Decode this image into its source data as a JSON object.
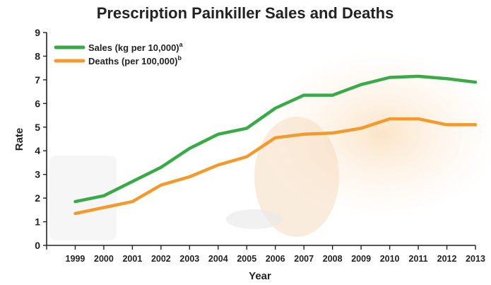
{
  "chart_data": {
    "type": "line",
    "title": "Prescription Painkiller Sales and Deaths",
    "xlabel": "Year",
    "ylabel": "Rate",
    "x": [
      1999,
      2000,
      2001,
      2002,
      2003,
      2004,
      2005,
      2006,
      2007,
      2008,
      2009,
      2010,
      2011,
      2012,
      2013
    ],
    "xlim": [
      1998,
      2013
    ],
    "ylim": [
      0,
      9
    ],
    "yticks": [
      0,
      1,
      2,
      3,
      4,
      5,
      6,
      7,
      8,
      9
    ],
    "grid": false,
    "legend_position": "top-left",
    "series": [
      {
        "name": "Sales (kg per 10,000)",
        "superscript": "a",
        "color": "#3aaa48",
        "values": [
          1.85,
          2.1,
          2.7,
          3.3,
          4.1,
          4.7,
          4.95,
          5.8,
          6.35,
          6.35,
          6.8,
          7.1,
          7.15,
          7.05,
          6.9
        ]
      },
      {
        "name": "Deaths (per 100,000)",
        "superscript": "b",
        "color": "#f29a2e",
        "values": [
          1.35,
          1.6,
          1.85,
          2.55,
          2.9,
          3.4,
          3.75,
          4.55,
          4.7,
          4.75,
          4.95,
          5.35,
          5.35,
          5.1,
          5.1
        ]
      }
    ]
  }
}
